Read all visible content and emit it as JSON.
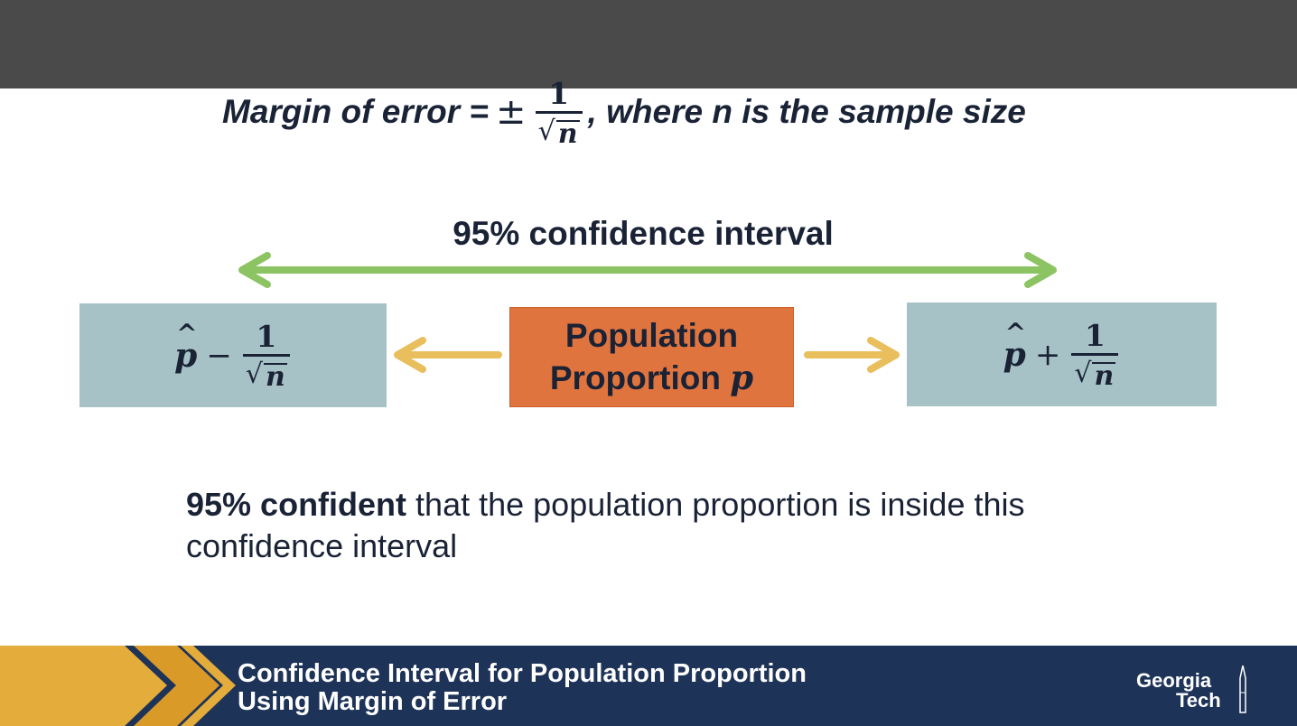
{
  "formula": {
    "prefix": "Margin of error =",
    "plus_minus": "±",
    "numerator": "1",
    "radicand": "n",
    "suffix": ", where n is the sample size"
  },
  "interval": {
    "label": "95% confidence interval",
    "arrow_color": "#8cc464",
    "inner_arrow_color": "#e9be5c"
  },
  "lower_bound": {
    "estimate": "p",
    "operator": "−",
    "numerator": "1",
    "radicand": "n",
    "color": "#a6c2c6"
  },
  "center_box": {
    "line1": "Population",
    "line2": "Proportion",
    "symbol": "p",
    "color": "#e0743e"
  },
  "upper_bound": {
    "estimate": "p",
    "operator": "+",
    "numerator": "1",
    "radicand": "n",
    "color": "#a6c2c6"
  },
  "statement": {
    "bold": "95% confident",
    "rest": " that the population proportion is inside this confidence interval"
  },
  "footer": {
    "title_line1": "Confidence Interval for Population Proportion",
    "title_line2": "Using Margin of Error",
    "logo_line1": "Georgia",
    "logo_line2": "Tech",
    "background_color": "#1e3358",
    "accent_color": "#e3ac3b"
  }
}
